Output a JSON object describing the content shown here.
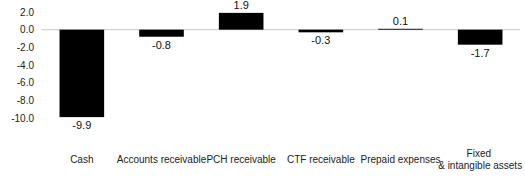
{
  "chart_data": {
    "type": "bar",
    "categories": [
      "Cash",
      "Accounts receivable",
      "PCH receivable",
      "CTF receivable",
      "Prepaid expenses",
      "Fixed & intangible assets"
    ],
    "values": [
      -9.9,
      -0.8,
      1.9,
      -0.3,
      0.1,
      -1.7
    ],
    "color": "#000000",
    "ylim": [
      -10,
      2
    ],
    "yticks": [
      {
        "value": 2,
        "label": "2.0"
      },
      {
        "value": 0,
        "label": "0.0"
      },
      {
        "value": -2,
        "label": "-2.0"
      },
      {
        "value": -4,
        "label": "-4.0"
      },
      {
        "value": -6,
        "label": "-6.0"
      },
      {
        "value": -8,
        "label": "-8.0"
      },
      {
        "value": -10,
        "label": "-10.0"
      }
    ],
    "grid": false,
    "data_labels": true
  }
}
